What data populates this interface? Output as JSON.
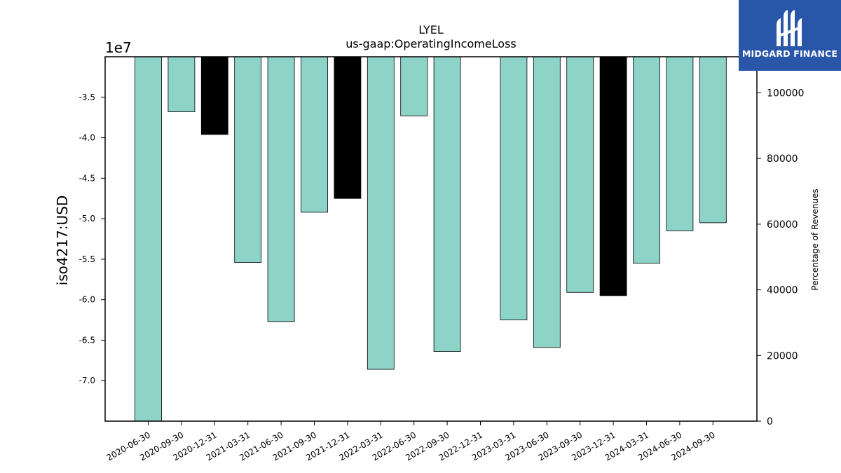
{
  "chart_data": {
    "type": "bar",
    "title": "LYEL",
    "subtitle": "us-gaap:OperatingIncomeLoss",
    "ylabel": "iso4217:USD",
    "y2label": "Percentage of Revenues",
    "offset_text": "1e7",
    "ylim": [
      -75000000,
      -30000000
    ],
    "y2lim": [
      0,
      111000
    ],
    "yticks": [
      -35000000,
      -40000000,
      -45000000,
      -50000000,
      -55000000,
      -60000000,
      -65000000,
      -70000000
    ],
    "ytick_labels": [
      "-3.5",
      "-4.0",
      "-4.5",
      "-5.0",
      "-5.5",
      "-6.0",
      "-6.5",
      "-7.0"
    ],
    "y2ticks": [
      0,
      20000,
      40000,
      60000,
      80000,
      100000
    ],
    "y2tick_labels": [
      "0",
      "20000",
      "40000",
      "60000",
      "80000",
      "100000"
    ],
    "categories": [
      "2020-06-30",
      "2020-09-30",
      "2020-12-31",
      "2021-03-31",
      "2021-06-30",
      "2021-09-30",
      "2021-12-31",
      "2022-03-31",
      "2022-06-30",
      "2022-09-30",
      "2022-12-31",
      "2023-03-31",
      "2023-06-30",
      "2023-09-30",
      "2023-12-31",
      "2024-03-31",
      "2024-06-30",
      "2024-09-30"
    ],
    "values": [
      -75000000,
      -36800000,
      -39600000,
      -55400000,
      -62700000,
      -49200000,
      -47500000,
      -68600000,
      -37300000,
      -66400000,
      null,
      -62500000,
      -65900000,
      -59100000,
      -59500000,
      -55500000,
      -51500000,
      -50500000
    ],
    "bar_colors": [
      "#8dd3c7",
      "#8dd3c7",
      "#000000",
      "#8dd3c7",
      "#8dd3c7",
      "#8dd3c7",
      "#000000",
      "#8dd3c7",
      "#8dd3c7",
      "#8dd3c7",
      "#8dd3c7",
      "#8dd3c7",
      "#8dd3c7",
      "#8dd3c7",
      "#000000",
      "#8dd3c7",
      "#8dd3c7",
      "#8dd3c7"
    ],
    "grid": false,
    "legend": "none"
  },
  "logo": {
    "text": "MIDGARD FINANCE",
    "background": "#2a56aa"
  }
}
